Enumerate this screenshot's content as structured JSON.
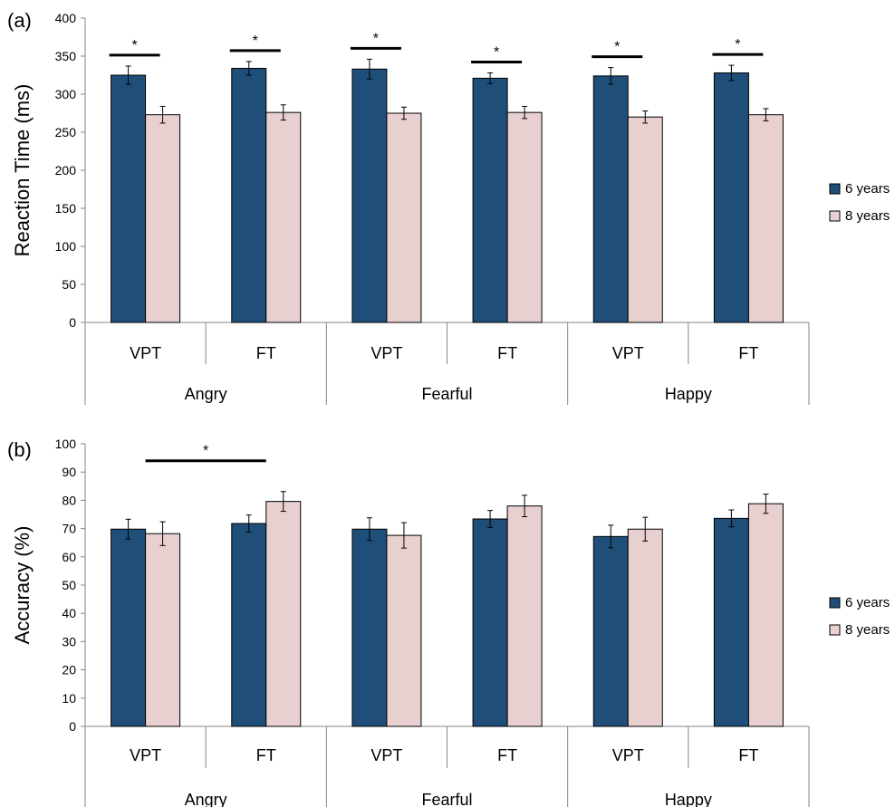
{
  "chart_data": [
    {
      "panel_label": "(a)",
      "type": "bar",
      "ylabel": "Reaction Time (ms)",
      "ylim": [
        0,
        400
      ],
      "yticks": [
        0,
        50,
        100,
        150,
        200,
        250,
        300,
        350,
        400
      ],
      "groups": [
        "Angry",
        "Fearful",
        "Happy"
      ],
      "categories": [
        "VPT",
        "FT",
        "VPT",
        "FT",
        "VPT",
        "FT"
      ],
      "series": [
        {
          "name": "6 years",
          "color": "#1f4e79",
          "values": [
            325,
            334,
            333,
            321,
            324,
            328
          ],
          "errors": [
            12,
            9,
            13,
            7,
            11,
            10
          ]
        },
        {
          "name": "8 years",
          "color": "#e8d0d0",
          "values": [
            273,
            276,
            275,
            276,
            270,
            273
          ],
          "errors": [
            11,
            10,
            8,
            8,
            8,
            8
          ]
        }
      ],
      "significance": [
        {
          "from": 0,
          "to": 0,
          "label": "*"
        },
        {
          "from": 1,
          "to": 1,
          "label": "*"
        },
        {
          "from": 2,
          "to": 2,
          "label": "*"
        },
        {
          "from": 3,
          "to": 3,
          "label": "*"
        },
        {
          "from": 4,
          "to": 4,
          "label": "*"
        },
        {
          "from": 5,
          "to": 5,
          "label": "*"
        }
      ],
      "legend_position": "right"
    },
    {
      "panel_label": "(b)",
      "type": "bar",
      "ylabel": "Accuracy (%)",
      "ylim": [
        0,
        100
      ],
      "yticks": [
        0,
        10,
        20,
        30,
        40,
        50,
        60,
        70,
        80,
        90,
        100
      ],
      "groups": [
        "Angry",
        "Fearful",
        "Happy"
      ],
      "categories": [
        "VPT",
        "FT",
        "VPT",
        "FT",
        "VPT",
        "FT"
      ],
      "series": [
        {
          "name": "6 years",
          "color": "#1f4e79",
          "values": [
            69.8,
            71.8,
            69.8,
            73.4,
            67.2,
            73.6
          ],
          "errors": [
            3.5,
            3.0,
            4.0,
            3.0,
            4.0,
            3.0
          ]
        },
        {
          "name": "8 years",
          "color": "#e8d0d0",
          "values": [
            68.2,
            79.6,
            67.6,
            78.0,
            69.8,
            78.8
          ],
          "errors": [
            4.2,
            3.5,
            4.5,
            3.8,
            4.2,
            3.4
          ]
        }
      ],
      "significance": [
        {
          "from": 0,
          "to": 1,
          "label": "*"
        }
      ],
      "legend_position": "right"
    }
  ]
}
